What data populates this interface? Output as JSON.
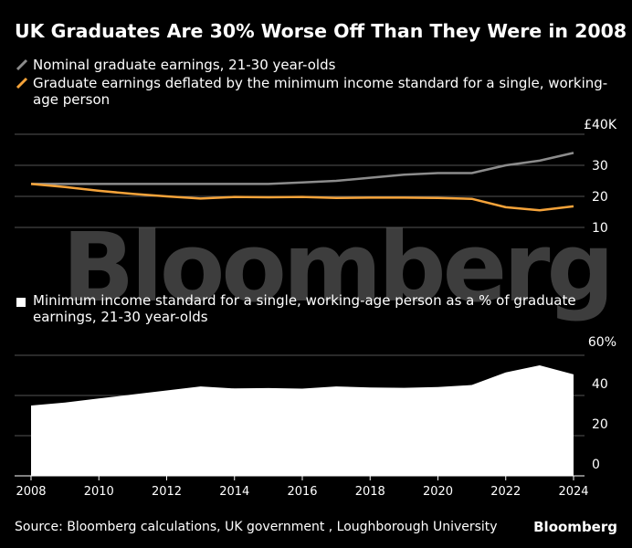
{
  "title": "UK Graduates Are 30% Worse Off Than They Were in 2008",
  "source": "Source: Bloomberg calculations, UK government , Loughborough University",
  "brand": "Bloomberg",
  "watermark": "Bloomberg",
  "colors": {
    "background": "#000000",
    "nominal": "#8c8c8c",
    "deflated": "#f5a33a",
    "area": "#ffffff",
    "grid": "#555555"
  },
  "chart_data": [
    {
      "type": "line",
      "x": [
        2008,
        2009,
        2010,
        2011,
        2012,
        2013,
        2014,
        2015,
        2016,
        2017,
        2018,
        2019,
        2020,
        2021,
        2022,
        2023,
        2024
      ],
      "series": [
        {
          "name": "Nominal graduate earnings, 21-30 year-olds",
          "values": [
            24,
            24,
            24,
            24,
            24,
            24,
            24,
            24,
            24.5,
            25,
            26,
            27,
            27.5,
            27.5,
            30,
            31.5,
            34
          ]
        },
        {
          "name": "Graduate earnings deflated by the minimum income standard for a single, working-age person",
          "values": [
            24,
            23,
            21.8,
            20.8,
            20,
            19.3,
            19.8,
            19.7,
            19.8,
            19.5,
            19.6,
            19.6,
            19.5,
            19.2,
            16.5,
            15.5,
            16.8
          ]
        }
      ],
      "ylim": [
        0,
        40
      ],
      "yticks": [
        10,
        20,
        30,
        40
      ],
      "ytick_labels": [
        "10",
        "20",
        "30",
        "£40K"
      ],
      "grid": true
    },
    {
      "type": "area",
      "x": [
        2008,
        2009,
        2010,
        2011,
        2012,
        2013,
        2014,
        2015,
        2016,
        2017,
        2018,
        2019,
        2020,
        2021,
        2022,
        2023,
        2024
      ],
      "series": [
        {
          "name": "Minimum income standard for a single, working-age person as a % of graduate earnings, 21-30 year-olds",
          "values": [
            35,
            36.5,
            38.5,
            40.5,
            42.5,
            44.5,
            43.5,
            43.7,
            43.4,
            44.5,
            44,
            43.8,
            44.2,
            45.2,
            51.5,
            55,
            50.5
          ]
        }
      ],
      "ylim": [
        0,
        60
      ],
      "yticks": [
        0,
        20,
        40,
        60
      ],
      "ytick_labels": [
        "0",
        "20",
        "40",
        "60%"
      ],
      "xticks": [
        2008,
        2010,
        2012,
        2014,
        2016,
        2018,
        2020,
        2022,
        2024
      ],
      "grid": true
    }
  ]
}
